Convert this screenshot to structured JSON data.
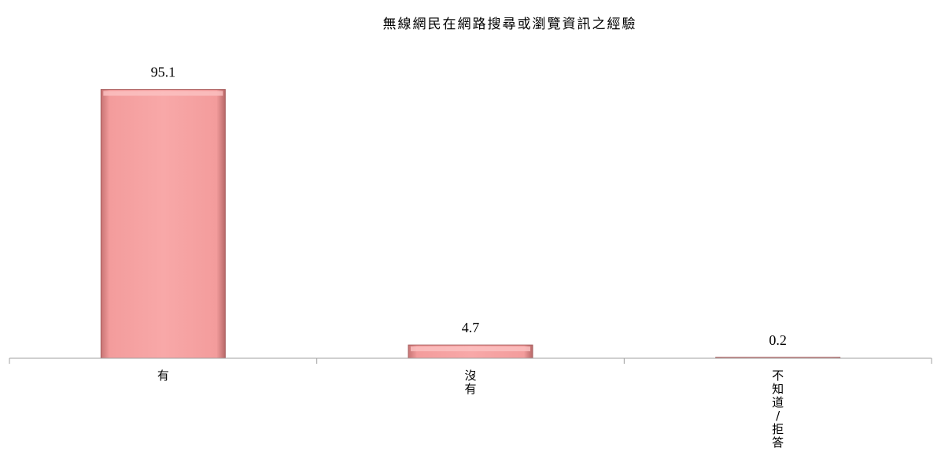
{
  "chart_data": {
    "type": "bar",
    "title": "無線網民在網路搜尋或瀏覽資訊之經驗",
    "categories": [
      "有",
      "沒有",
      "不知道/拒答"
    ],
    "values": [
      95.1,
      4.7,
      0.2
    ],
    "xlabel": "",
    "ylabel": "",
    "ylim": [
      0,
      100
    ],
    "grid": false,
    "legend": "none",
    "bar_color": "#f4a0a0",
    "bar_edge_color": "#a86060",
    "axis_color": "#a0a0a0"
  }
}
